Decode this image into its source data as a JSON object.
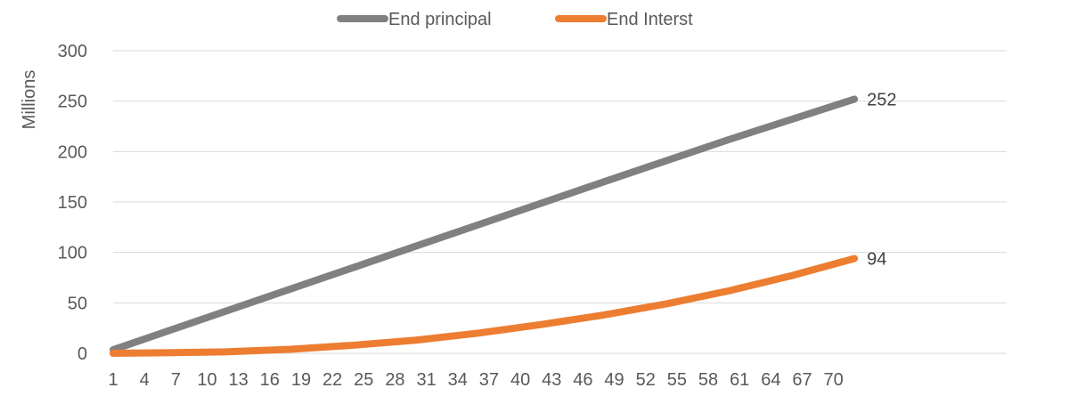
{
  "chart_data": {
    "type": "line",
    "ylabel": "Millions",
    "ylim": [
      0,
      300
    ],
    "yticks": [
      0,
      50,
      100,
      150,
      200,
      250,
      300
    ],
    "xticks": [
      "1",
      "4",
      "7",
      "10",
      "13",
      "16",
      "19",
      "22",
      "25",
      "28",
      "31",
      "34",
      "37",
      "40",
      "43",
      "46",
      "49",
      "52",
      "55",
      "58",
      "61",
      "64",
      "67",
      "70"
    ],
    "x_range": [
      1,
      72
    ],
    "grid": true,
    "legend_position": "top",
    "series": [
      {
        "name": "End principal",
        "color": "#808080",
        "x": [
          1,
          12,
          24,
          36,
          48,
          60,
          72
        ],
        "values": [
          3.5,
          42.5,
          85,
          127.5,
          170,
          212,
          252
        ],
        "end_label": "252"
      },
      {
        "name": "End Interst",
        "color": "#ED7D31",
        "x": [
          1,
          6,
          12,
          18,
          24,
          30,
          36,
          42,
          48,
          54,
          60,
          66,
          72
        ],
        "values": [
          0,
          0.5,
          1.5,
          4,
          8,
          13,
          20,
          28.5,
          38,
          49,
          62,
          77,
          94
        ],
        "end_label": "94"
      }
    ]
  }
}
